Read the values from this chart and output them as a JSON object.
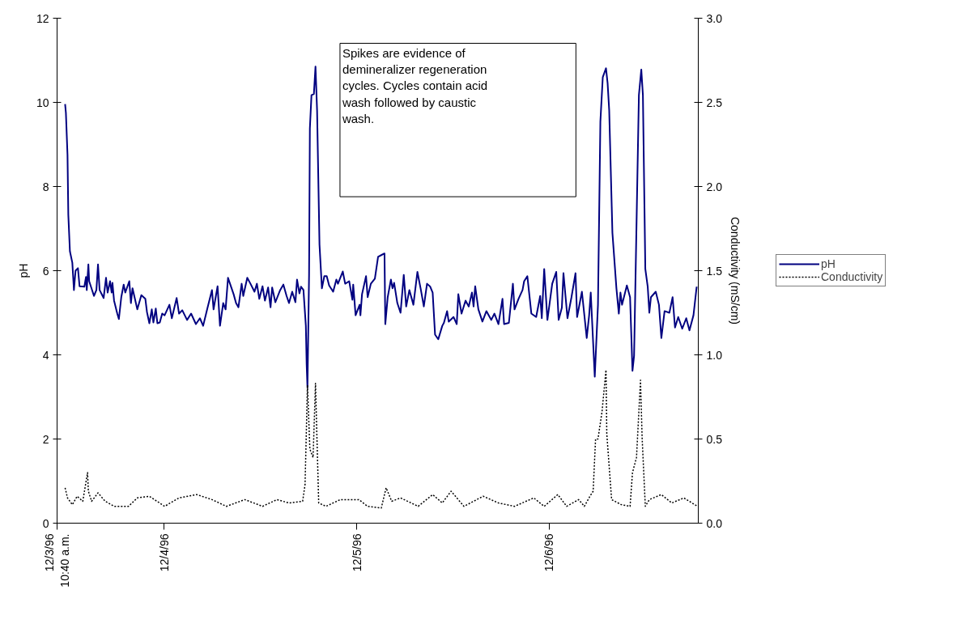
{
  "chart_data": {
    "type": "line",
    "ylabel": "pH",
    "y2label": "Conductivity (mS/cm)",
    "annotations": [
      "Spikes are evidence of demineralizer regeneration cycles.  Cycles contain acid wash followed by caustic wash."
    ],
    "xlim": [
      "1996-12-03T10:40",
      "1996-12-06T18:34"
    ],
    "xticks": [
      {
        "value": "1996-12-03T10:40",
        "label": "12/3/96\n10:40 a.m."
      },
      {
        "value": "1996-12-04",
        "label": "12/4/96"
      },
      {
        "value": "1996-12-05",
        "label": "12/5/96"
      },
      {
        "value": "1996-12-06",
        "label": "12/6/96"
      }
    ],
    "ylim": [
      0,
      12
    ],
    "yticks": [
      0,
      2,
      4,
      6,
      8,
      10,
      12
    ],
    "y2lim": [
      0,
      3
    ],
    "y2ticks": [
      {
        "value": 0,
        "label": "0.0"
      },
      {
        "value": 0.5,
        "label": "0.5"
      },
      {
        "value": 1,
        "label": "1.0"
      },
      {
        "value": 1.5,
        "label": "1.5"
      },
      {
        "value": 2,
        "label": "2.0"
      },
      {
        "value": 2.5,
        "label": "2.5"
      },
      {
        "value": 3,
        "label": "3.0"
      }
    ],
    "grid": false,
    "legend": "right",
    "marker": "none",
    "series": [
      {
        "name": "pH",
        "color": "#000080",
        "line_style": "solid",
        "x": [
          "1996-12-03T11:40",
          "1996-12-03T11:46",
          "1996-12-03T11:58",
          "1996-12-03T12:04",
          "1996-12-03T12:16",
          "1996-12-03T12:34",
          "1996-12-03T12:46",
          "1996-12-03T12:58",
          "1996-12-03T13:16",
          "1996-12-03T13:28",
          "1996-12-03T14:04",
          "1996-12-03T14:16",
          "1996-12-03T14:22",
          "1996-12-03T14:34",
          "1996-12-03T14:40",
          "1996-12-03T15:16",
          "1996-12-03T15:34",
          "1996-12-03T15:46",
          "1996-12-03T15:58",
          "1996-12-03T16:28",
          "1996-12-03T16:46",
          "1996-12-03T16:58",
          "1996-12-03T17:16",
          "1996-12-03T17:28",
          "1996-12-03T17:34",
          "1996-12-03T17:46",
          "1996-12-03T18:10",
          "1996-12-03T18:22",
          "1996-12-03T18:40",
          "1996-12-03T18:58",
          "1996-12-03T19:10",
          "1996-12-03T19:40",
          "1996-12-03T19:52",
          "1996-12-03T20:04",
          "1996-12-03T20:40",
          "1996-12-03T21:10",
          "1996-12-03T21:40",
          "1996-12-03T21:52",
          "1996-12-03T22:10",
          "1996-12-03T22:28",
          "1996-12-03T22:40",
          "1996-12-03T22:58",
          "1996-12-03T23:10",
          "1996-12-03T23:28",
          "1996-12-03T23:46",
          "1996-12-04T00:04",
          "1996-12-04T00:40",
          "1996-12-04T00:58",
          "1996-12-04T01:34",
          "1996-12-04T01:52",
          "1996-12-04T02:16",
          "1996-12-04T02:52",
          "1996-12-04T03:22",
          "1996-12-04T03:58",
          "1996-12-04T04:28",
          "1996-12-04T04:52",
          "1996-12-04T05:22",
          "1996-12-04T05:58",
          "1996-12-04T06:10",
          "1996-12-04T06:40",
          "1996-12-04T06:58",
          "1996-12-04T07:22",
          "1996-12-04T07:40",
          "1996-12-04T07:58",
          "1996-12-04T08:40",
          "1996-12-04T08:58",
          "1996-12-04T09:16",
          "1996-12-04T09:40",
          "1996-12-04T09:52",
          "1996-12-04T10:22",
          "1996-12-04T10:46",
          "1996-12-04T11:16",
          "1996-12-04T11:34",
          "1996-12-04T11:52",
          "1996-12-04T12:16",
          "1996-12-04T12:34",
          "1996-12-04T12:58",
          "1996-12-04T13:16",
          "1996-12-04T13:28",
          "1996-12-04T13:52",
          "1996-12-04T14:28",
          "1996-12-04T14:52",
          "1996-12-04T15:16",
          "1996-12-04T15:34",
          "1996-12-04T15:58",
          "1996-12-04T16:22",
          "1996-12-04T16:34",
          "1996-12-04T16:52",
          "1996-12-04T17:04",
          "1996-12-04T17:22",
          "1996-12-04T17:40",
          "1996-12-04T17:46",
          "1996-12-04T17:52",
          "1996-12-04T18:04",
          "1996-12-04T18:10",
          "1996-12-04T18:22",
          "1996-12-04T18:40",
          "1996-12-04T18:52",
          "1996-12-04T19:04",
          "1996-12-04T19:22",
          "1996-12-04T19:40",
          "1996-12-04T19:58",
          "1996-12-04T20:16",
          "1996-12-04T20:34",
          "1996-12-04T21:04",
          "1996-12-04T21:28",
          "1996-12-04T21:40",
          "1996-12-04T22:16",
          "1996-12-04T22:34",
          "1996-12-04T23:04",
          "1996-12-04T23:28",
          "1996-12-04T23:34",
          "1996-12-04T23:52",
          "1996-12-05T00:22",
          "1996-12-05T00:28",
          "1996-12-05T00:40",
          "1996-12-05T01:10",
          "1996-12-05T01:22",
          "1996-12-05T01:46",
          "1996-12-05T02:16",
          "1996-12-05T02:40",
          "1996-12-05T03:04",
          "1996-12-05T03:28",
          "1996-12-05T03:34",
          "1996-12-05T03:52",
          "1996-12-05T04:16",
          "1996-12-05T04:28",
          "1996-12-05T04:40",
          "1996-12-05T05:04",
          "1996-12-05T05:28",
          "1996-12-05T05:52",
          "1996-12-05T06:10",
          "1996-12-05T06:34",
          "1996-12-05T07:04",
          "1996-12-05T07:34",
          "1996-12-05T07:58",
          "1996-12-05T08:22",
          "1996-12-05T08:46",
          "1996-12-05T09:10",
          "1996-12-05T09:28",
          "1996-12-05T09:46",
          "1996-12-05T10:10",
          "1996-12-05T10:40",
          "1996-12-05T10:52",
          "1996-12-05T11:16",
          "1996-12-05T11:28",
          "1996-12-05T12:04",
          "1996-12-05T12:28",
          "1996-12-05T12:40",
          "1996-12-05T13:04",
          "1996-12-05T13:34",
          "1996-12-05T13:58",
          "1996-12-05T14:22",
          "1996-12-05T14:34",
          "1996-12-05T14:46",
          "1996-12-05T15:10",
          "1996-12-05T15:40",
          "1996-12-05T16:10",
          "1996-12-05T16:46",
          "1996-12-05T17:10",
          "1996-12-05T17:40",
          "1996-12-05T18:10",
          "1996-12-05T18:22",
          "1996-12-05T18:58",
          "1996-12-05T19:28",
          "1996-12-05T19:40",
          "1996-12-05T20:10",
          "1996-12-05T20:40",
          "1996-12-05T20:52",
          "1996-12-05T21:16",
          "1996-12-05T21:46",
          "1996-12-05T22:22",
          "1996-12-05T22:52",
          "1996-12-05T23:04",
          "1996-12-05T23:22",
          "1996-12-05T23:46",
          "1996-12-06T00:22",
          "1996-12-06T00:52",
          "1996-12-06T01:10",
          "1996-12-06T01:34",
          "1996-12-06T01:46",
          "1996-12-06T02:16",
          "1996-12-06T02:46",
          "1996-12-06T03:16",
          "1996-12-06T03:28",
          "1996-12-06T04:04",
          "1996-12-06T04:40",
          "1996-12-06T04:58",
          "1996-12-06T05:10",
          "1996-12-06T05:40",
          "1996-12-06T06:04",
          "1996-12-06T06:22",
          "1996-12-06T06:40",
          "1996-12-06T07:04",
          "1996-12-06T07:16",
          "1996-12-06T07:28",
          "1996-12-06T07:52",
          "1996-12-06T08:22",
          "1996-12-06T08:40",
          "1996-12-06T08:52",
          "1996-12-06T09:04",
          "1996-12-06T09:40",
          "1996-12-06T10:04",
          "1996-12-06T10:22",
          "1996-12-06T10:34",
          "1996-12-06T11:10",
          "1996-12-06T11:28",
          "1996-12-06T11:40",
          "1996-12-06T11:58",
          "1996-12-06T12:16",
          "1996-12-06T12:28",
          "1996-12-06T12:40",
          "1996-12-06T13:16",
          "1996-12-06T13:40",
          "1996-12-06T13:58",
          "1996-12-06T14:22",
          "1996-12-06T14:58",
          "1996-12-06T15:22",
          "1996-12-06T15:40",
          "1996-12-06T16:04",
          "1996-12-06T16:34",
          "1996-12-06T17:04",
          "1996-12-06T17:28",
          "1996-12-06T17:58",
          "1996-12-06T18:22"
        ],
        "values": [
          9.96,
          9.75,
          8.75,
          7.33,
          6.46,
          6.19,
          5.54,
          6.0,
          6.06,
          5.63,
          5.62,
          5.85,
          5.54,
          6.15,
          5.75,
          5.4,
          5.54,
          6.15,
          5.54,
          5.35,
          5.83,
          5.48,
          5.75,
          5.48,
          5.71,
          5.29,
          4.98,
          4.85,
          5.37,
          5.67,
          5.48,
          5.75,
          5.23,
          5.58,
          5.08,
          5.42,
          5.33,
          5.02,
          4.75,
          5.08,
          4.77,
          5.1,
          4.75,
          4.77,
          4.98,
          4.94,
          5.19,
          4.87,
          5.35,
          4.98,
          5.06,
          4.83,
          4.98,
          4.73,
          4.87,
          4.69,
          5.08,
          5.54,
          5.08,
          5.63,
          4.69,
          5.23,
          5.08,
          5.83,
          5.44,
          5.23,
          5.13,
          5.69,
          5.4,
          5.83,
          5.69,
          5.5,
          5.69,
          5.33,
          5.63,
          5.29,
          5.6,
          5.13,
          5.6,
          5.25,
          5.54,
          5.67,
          5.4,
          5.23,
          5.5,
          5.25,
          5.79,
          5.46,
          5.62,
          5.54,
          4.69,
          3.77,
          3.23,
          5.9,
          9.38,
          10.17,
          10.2,
          10.85,
          9.8,
          6.62,
          5.58,
          5.87,
          5.87,
          5.65,
          5.5,
          5.79,
          5.69,
          5.98,
          5.69,
          5.75,
          5.31,
          5.67,
          4.94,
          5.19,
          4.94,
          5.44,
          5.87,
          5.37,
          5.69,
          5.81,
          6.33,
          6.37,
          6.41,
          4.73,
          5.37,
          5.79,
          5.58,
          5.71,
          5.23,
          5.0,
          5.9,
          5.15,
          5.54,
          5.19,
          5.97,
          5.58,
          5.15,
          5.69,
          5.62,
          5.48,
          4.48,
          4.37,
          4.69,
          4.76,
          5.04,
          4.79,
          4.9,
          4.73,
          5.44,
          4.98,
          5.29,
          5.15,
          5.48,
          5.15,
          5.63,
          5.08,
          4.79,
          5.04,
          4.83,
          4.98,
          4.73,
          5.33,
          4.73,
          4.76,
          5.69,
          5.08,
          5.33,
          5.54,
          5.75,
          5.87,
          4.98,
          4.9,
          5.4,
          4.87,
          6.04,
          4.83,
          5.69,
          5.97,
          4.83,
          5.12,
          5.94,
          4.87,
          5.37,
          5.94,
          4.9,
          5.5,
          4.4,
          4.94,
          5.48,
          3.48,
          5.19,
          9.54,
          10.6,
          10.81,
          10.46,
          9.81,
          6.9,
          5.58,
          4.98,
          5.48,
          5.19,
          5.65,
          5.37,
          3.62,
          3.98,
          10.17,
          10.78,
          10.17,
          6.04,
          5.62,
          5.0,
          5.37,
          5.5,
          5.19,
          4.4,
          5.04,
          5.0,
          5.37,
          4.65,
          4.9,
          4.62,
          4.87,
          4.58,
          4.94,
          5.62
        ]
      },
      {
        "name": "Conductivity",
        "color": "#000000",
        "line_style": "dotted",
        "axis": "y2",
        "x": [
          "1996-12-03T11:40",
          "1996-12-03T11:58",
          "1996-12-03T12:34",
          "1996-12-03T13:10",
          "1996-12-03T13:52",
          "1996-12-03T14:28",
          "1996-12-03T14:34",
          "1996-12-03T14:58",
          "1996-12-03T15:46",
          "1996-12-03T16:40",
          "1996-12-03T17:46",
          "1996-12-03T19:34",
          "1996-12-03T20:40",
          "1996-12-03T22:10",
          "1996-12-04T00:04",
          "1996-12-04T01:52",
          "1996-12-04T04:04",
          "1996-12-04T05:58",
          "1996-12-04T07:46",
          "1996-12-04T10:04",
          "1996-12-04T12:16",
          "1996-12-04T14:04",
          "1996-12-04T15:34",
          "1996-12-04T17:16",
          "1996-12-04T17:34",
          "1996-12-04T17:52",
          "1996-12-04T18:10",
          "1996-12-04T18:34",
          "1996-12-04T18:52",
          "1996-12-04T19:16",
          "1996-12-04T20:10",
          "1996-12-04T21:58",
          "1996-12-05T00:16",
          "1996-12-05T01:22",
          "1996-12-05T03:04",
          "1996-12-05T03:40",
          "1996-12-05T04:22",
          "1996-12-05T05:28",
          "1996-12-05T07:40",
          "1996-12-05T09:28",
          "1996-12-05T10:40",
          "1996-12-05T11:46",
          "1996-12-05T13:22",
          "1996-12-05T15:46",
          "1996-12-05T17:40",
          "1996-12-05T19:40",
          "1996-12-05T22:04",
          "1996-12-05T23:22",
          "1996-12-06T01:04",
          "1996-12-06T02:10",
          "1996-12-06T03:40",
          "1996-12-06T04:22",
          "1996-12-06T05:04",
          "1996-12-06T05:28",
          "1996-12-06T05:46",
          "1996-12-06T06:04",
          "1996-12-06T06:34",
          "1996-12-06T07:04",
          "1996-12-06T07:10",
          "1996-12-06T07:46",
          "1996-12-06T08:58",
          "1996-12-06T10:04",
          "1996-12-06T10:22",
          "1996-12-06T10:52",
          "1996-12-06T11:22",
          "1996-12-06T11:34",
          "1996-12-06T11:58",
          "1996-12-06T12:28",
          "1996-12-06T13:58",
          "1996-12-06T15:16",
          "1996-12-06T16:46",
          "1996-12-06T18:28"
        ],
        "values": [
          0.21,
          0.15,
          0.11,
          0.16,
          0.13,
          0.3,
          0.19,
          0.13,
          0.18,
          0.13,
          0.1,
          0.1,
          0.15,
          0.16,
          0.1,
          0.15,
          0.17,
          0.14,
          0.1,
          0.14,
          0.1,
          0.14,
          0.12,
          0.13,
          0.23,
          0.82,
          0.44,
          0.39,
          0.83,
          0.12,
          0.1,
          0.14,
          0.14,
          0.1,
          0.09,
          0.21,
          0.13,
          0.15,
          0.1,
          0.17,
          0.12,
          0.19,
          0.1,
          0.16,
          0.12,
          0.1,
          0.15,
          0.1,
          0.17,
          0.1,
          0.14,
          0.1,
          0.16,
          0.19,
          0.5,
          0.5,
          0.66,
          0.91,
          0.53,
          0.14,
          0.11,
          0.1,
          0.3,
          0.39,
          0.85,
          0.51,
          0.1,
          0.14,
          0.17,
          0.12,
          0.15,
          0.1
        ]
      }
    ]
  }
}
